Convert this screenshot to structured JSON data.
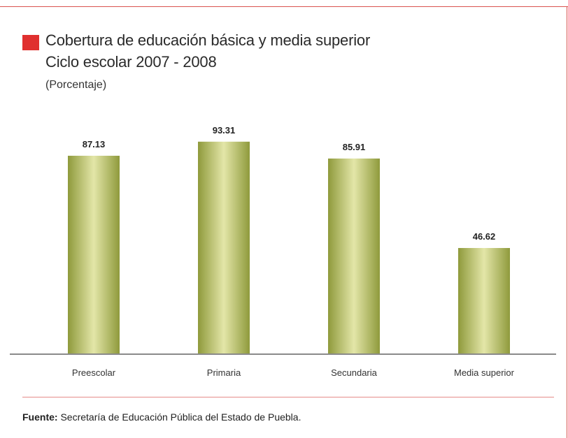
{
  "title_line_1": "Cobertura de educación básica y media superior",
  "title_line_2": "Ciclo escolar 2007 - 2008",
  "subtitle": "(Porcentaje)",
  "source_label": "Fuente:",
  "source_text": " Secretaría de Educación Pública del Estado de Puebla.",
  "colors": {
    "marker": "#e0302f",
    "frame": "#d9534f",
    "bar_light": "#e3e6a8",
    "bar_dark": "#8f9a3c",
    "axis": "#8a8a8a"
  },
  "chart_data": {
    "type": "bar",
    "categories": [
      "Preescolar",
      "Primaria",
      "Secundaria",
      "Media superior"
    ],
    "values": [
      87.13,
      93.31,
      85.91,
      46.62
    ],
    "value_labels": [
      "87.13",
      "93.31",
      "85.91",
      "46.62"
    ],
    "title": "Cobertura de educación básica y media superior",
    "subtitle": "Ciclo escolar 2007 - 2008",
    "ylabel": "(Porcentaje)",
    "xlabel": "",
    "ylim": [
      0,
      100
    ],
    "grid": false,
    "legend": "none"
  }
}
